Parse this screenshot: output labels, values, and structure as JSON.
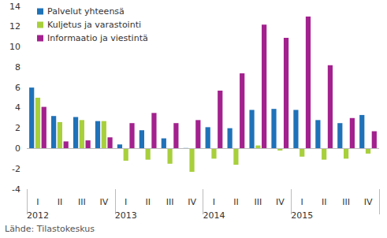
{
  "chart_data": {
    "type": "bar",
    "categories": [
      "I\n2012",
      "II",
      "III",
      "IV",
      "I\n2013",
      "II",
      "III",
      "IV",
      "I\n2014",
      "II",
      "III",
      "IV",
      "I\n2015",
      "II",
      "III",
      "IV"
    ],
    "series": [
      {
        "name": "Palvelut yhteensä",
        "color": "#1f72b8",
        "values": [
          6.0,
          3.2,
          3.1,
          2.7,
          0.4,
          1.8,
          1.0,
          0.05,
          2.1,
          2.0,
          3.8,
          3.9,
          3.8,
          2.8,
          2.5,
          3.3
        ]
      },
      {
        "name": "Kuljetus ja varastointi",
        "color": "#a8cf3c",
        "values": [
          5.0,
          2.6,
          2.8,
          2.7,
          -1.2,
          -1.1,
          -1.5,
          -2.3,
          -1.0,
          -1.6,
          0.3,
          -0.2,
          -0.8,
          -1.1,
          -1.0,
          -0.5
        ]
      },
      {
        "name": "Informaatio ja viestintä",
        "color": "#a3218e",
        "values": [
          4.1,
          0.7,
          0.8,
          1.1,
          2.5,
          3.5,
          2.5,
          2.8,
          5.7,
          7.4,
          12.2,
          10.9,
          13.0,
          8.2,
          3.0,
          1.7
        ]
      }
    ],
    "ylim": [
      -4,
      14
    ],
    "yticks": [
      -4,
      -2,
      0,
      2,
      4,
      6,
      8,
      10,
      12,
      14
    ],
    "grid": false,
    "legend": "top-left",
    "source": "Lähde: Tilastokeskus"
  }
}
